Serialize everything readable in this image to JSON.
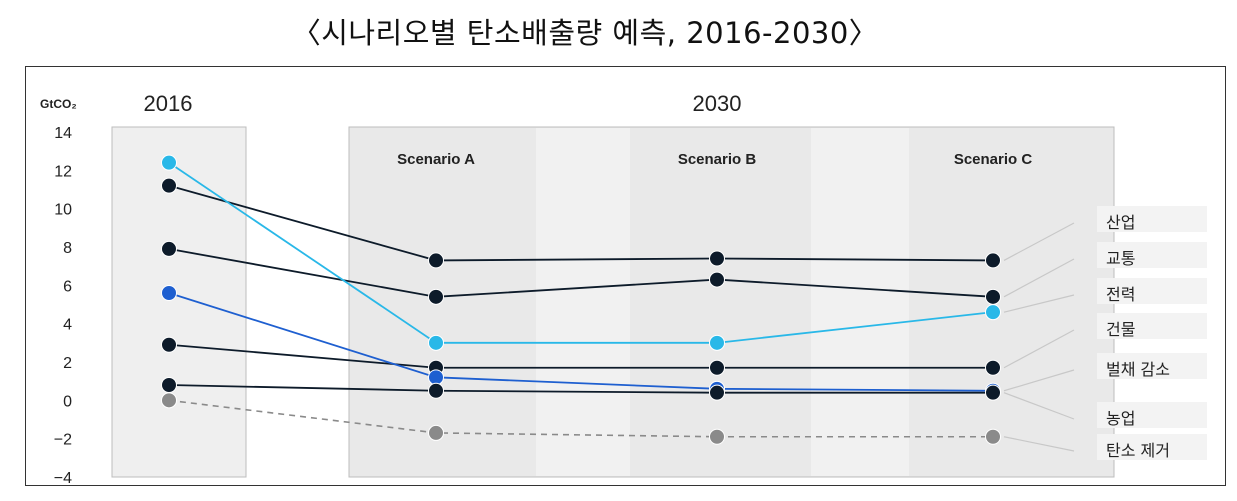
{
  "title": "〈시나리오별 탄소배출량 예측, 2016-2030〉",
  "chart_data": {
    "type": "line",
    "ylabel": "GtCO₂",
    "ylim": [
      -4,
      14
    ],
    "yticks": [
      14,
      12,
      10,
      8,
      6,
      4,
      2,
      0,
      -2,
      -4
    ],
    "ytick_labels": [
      "14",
      "12",
      "10",
      "8",
      "6",
      "4",
      "2",
      "0",
      "−2",
      "−4"
    ],
    "periods": [
      {
        "label": "2016"
      },
      {
        "label": "2030"
      }
    ],
    "categories": [
      "2016",
      "Scenario A",
      "Scenario B",
      "Scenario C"
    ],
    "series": [
      {
        "name": "산업",
        "color": "#0d1b2a",
        "values": [
          11.2,
          7.3,
          7.4,
          7.3
        ]
      },
      {
        "name": "교통",
        "color": "#0d1b2a",
        "values": [
          7.9,
          5.4,
          6.3,
          5.4
        ]
      },
      {
        "name": "전력",
        "color": "#29b8e8",
        "values": [
          12.4,
          3.0,
          3.0,
          4.6
        ]
      },
      {
        "name": "건물",
        "color": "#0d1b2a",
        "values": [
          2.9,
          1.7,
          1.7,
          1.7
        ]
      },
      {
        "name": "벌채 감소",
        "color": "#1e5fd0",
        "values": [
          5.6,
          1.2,
          0.6,
          0.5
        ]
      },
      {
        "name": "농업",
        "color": "#0d1b2a",
        "values": [
          0.8,
          0.5,
          0.4,
          0.4
        ]
      },
      {
        "name": "탄소 제거",
        "color": "#8a8a8a",
        "dashed": true,
        "values": [
          0.0,
          -1.7,
          -1.9,
          -1.9
        ]
      }
    ]
  }
}
